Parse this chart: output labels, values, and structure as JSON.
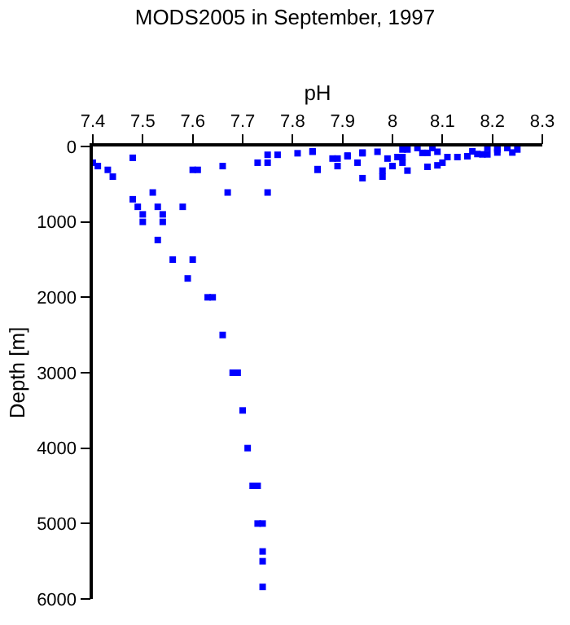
{
  "chart_data": {
    "type": "scatter",
    "title": "MODS2005 in September, 1997",
    "xlabel": "pH",
    "ylabel": "Depth [m]",
    "x": [
      7.59,
      7.63,
      7.64,
      7.66,
      7.68,
      7.69,
      7.7,
      7.71,
      7.72,
      7.73,
      7.73,
      7.74,
      7.74,
      7.74,
      7.74,
      7.4,
      7.41,
      7.43,
      7.44,
      7.48,
      7.48,
      7.49,
      7.5,
      7.5,
      7.52,
      7.53,
      7.54,
      7.54,
      7.53,
      7.56,
      7.58,
      7.6,
      7.6,
      7.61,
      7.66,
      7.67,
      7.73,
      7.75,
      7.77,
      7.75,
      7.75,
      7.81,
      7.84,
      7.85,
      7.84,
      7.85,
      7.88,
      7.89,
      7.89,
      7.91,
      7.94,
      7.91,
      7.93,
      7.94,
      7.94,
      7.97,
      7.98,
      7.98,
      7.99,
      8.0,
      8.01,
      8.02,
      8.02,
      8.03,
      8.02,
      8.03,
      8.05,
      8.06,
      8.07,
      8.07,
      8.08,
      8.09,
      8.09,
      8.1,
      8.11,
      8.13,
      8.15,
      8.16,
      8.17,
      8.18,
      8.19,
      8.19,
      8.21,
      8.21,
      8.23,
      8.24,
      8.25,
      8.21
    ],
    "series": [
      {
        "color": "#0000ff",
        "values": [
          1750,
          2000,
          2000,
          2500,
          3000,
          3000,
          3500,
          4000,
          4500,
          4500,
          5000,
          5000,
          5370,
          5500,
          5840,
          215,
          260,
          310,
          400,
          150,
          700,
          800,
          900,
          1000,
          610,
          800,
          900,
          1000,
          1240,
          1500,
          800,
          1500,
          310,
          310,
          260,
          610,
          215,
          110,
          110,
          215,
          610,
          90,
          65,
          300,
          70,
          310,
          160,
          160,
          260,
          120,
          80,
          130,
          215,
          90,
          420,
          70,
          320,
          400,
          160,
          260,
          140,
          140,
          215,
          320,
          40,
          40,
          20,
          85,
          85,
          270,
          20,
          250,
          70,
          215,
          140,
          140,
          130,
          65,
          100,
          105,
          105,
          20,
          20,
          80,
          20,
          80,
          40,
          40
        ]
      }
    ],
    "xlim": [
      7.4,
      8.3
    ],
    "xticks": [
      7.4,
      7.5,
      7.6,
      7.7,
      7.8,
      7.9,
      8,
      8.1,
      8.2,
      8.3
    ],
    "ylim": [
      6000,
      0
    ],
    "yticks": [
      0,
      1000,
      2000,
      3000,
      4000,
      5000,
      6000
    ],
    "marker": "square"
  }
}
